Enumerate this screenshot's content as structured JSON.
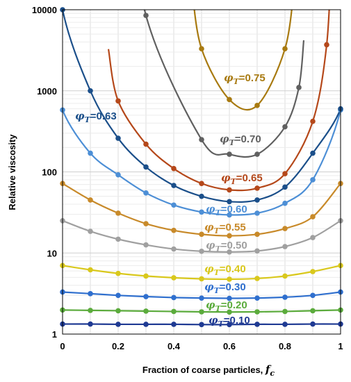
{
  "chart_data": {
    "type": "line",
    "title": "",
    "xlabel": "Fraction of coarse particles, f_c",
    "ylabel": "Relative viscosity",
    "xlim": [
      0,
      1
    ],
    "ylim": [
      1,
      10000
    ],
    "y_scale": "log",
    "grid": true,
    "x_ticks": [
      "0",
      "0.2",
      "0.4",
      "0.6",
      "0.8",
      "1"
    ],
    "y_ticks": [
      "1",
      "10",
      "100",
      "1000",
      "10000"
    ],
    "series": [
      {
        "name": "φT=0.10",
        "label_prefix": "φ",
        "label_sub": "T",
        "label_value": "=0.10",
        "color": "#1f3a93",
        "x": [
          0,
          0.1,
          0.2,
          0.3,
          0.4,
          0.5,
          0.6,
          0.7,
          0.8,
          0.9,
          1.0
        ],
        "y": [
          1.33,
          1.33,
          1.32,
          1.32,
          1.32,
          1.31,
          1.31,
          1.32,
          1.32,
          1.33,
          1.33
        ]
      },
      {
        "name": "φT=0.20",
        "label_prefix": "φ",
        "label_sub": "T",
        "label_value": "=0.20",
        "color": "#5bab3c",
        "x": [
          0,
          0.1,
          0.2,
          0.3,
          0.4,
          0.5,
          0.6,
          0.7,
          0.8,
          0.9,
          1.0
        ],
        "y": [
          1.98,
          1.96,
          1.94,
          1.92,
          1.9,
          1.88,
          1.87,
          1.88,
          1.9,
          1.94,
          1.98
        ]
      },
      {
        "name": "φT=0.30",
        "label_prefix": "φ",
        "label_sub": "T",
        "label_value": "=0.30",
        "color": "#2f6fce",
        "x": [
          0,
          0.1,
          0.2,
          0.3,
          0.4,
          0.5,
          0.6,
          0.7,
          0.8,
          0.9,
          1.0
        ],
        "y": [
          3.3,
          3.15,
          3.0,
          2.9,
          2.82,
          2.78,
          2.76,
          2.78,
          2.85,
          3.0,
          3.3
        ]
      },
      {
        "name": "φT=0.40",
        "label_prefix": "φ",
        "label_sub": "T",
        "label_value": "=0.40",
        "color": "#d9c81c",
        "x": [
          0,
          0.1,
          0.2,
          0.3,
          0.4,
          0.5,
          0.6,
          0.7,
          0.8,
          0.9,
          1.0
        ],
        "y": [
          7.0,
          6.2,
          5.6,
          5.2,
          4.95,
          4.8,
          4.75,
          4.85,
          5.2,
          5.9,
          7.0
        ]
      },
      {
        "name": "φT=0.50",
        "label_prefix": "φ",
        "label_sub": "T",
        "label_value": "=0.50",
        "color": "#a0a0a0",
        "x": [
          0,
          0.1,
          0.2,
          0.3,
          0.4,
          0.5,
          0.6,
          0.7,
          0.8,
          0.9,
          1.0
        ],
        "y": [
          25,
          18.5,
          14.8,
          12.6,
          11.2,
          10.5,
          10.3,
          10.6,
          12.0,
          15.5,
          25
        ]
      },
      {
        "name": "φT=0.55",
        "label_prefix": "φ",
        "label_sub": "T",
        "label_value": "=0.55",
        "color": "#c88a2a",
        "x": [
          0,
          0.1,
          0.2,
          0.3,
          0.4,
          0.5,
          0.6,
          0.7,
          0.8,
          0.9,
          1.0
        ],
        "y": [
          72,
          45,
          31,
          23,
          19,
          17,
          16.3,
          17,
          20,
          28,
          72
        ]
      },
      {
        "name": "φT=0.60",
        "label_prefix": "φ",
        "label_sub": "T",
        "label_value": "=0.60",
        "color": "#4d8fd6",
        "x": [
          0,
          0.1,
          0.2,
          0.3,
          0.4,
          0.5,
          0.6,
          0.7,
          0.8,
          0.9,
          1.0
        ],
        "y": [
          580,
          170,
          92,
          55,
          39,
          32,
          29.5,
          31,
          41,
          80,
          580
        ]
      },
      {
        "name": "φT=0.63",
        "label_prefix": "φ",
        "label_sub": "T",
        "label_value": "=0.63",
        "color": "#1b4f8a",
        "x": [
          0,
          0.1,
          0.2,
          0.3,
          0.4,
          0.5,
          0.6,
          0.7,
          0.8,
          0.9,
          1.0
        ],
        "y": [
          10000,
          1000,
          260,
          115,
          68,
          50,
          43,
          45,
          65,
          170,
          600
        ]
      },
      {
        "name": "φT=0.65",
        "label_prefix": "φ",
        "label_sub": "T",
        "label_value": "=0.65",
        "color": "#b5481a",
        "x": [
          0.2,
          0.3,
          0.4,
          0.5,
          0.6,
          0.7,
          0.8,
          0.9,
          0.95
        ],
        "y": [
          750,
          220,
          110,
          72,
          60,
          63,
          95,
          420,
          3700
        ]
      },
      {
        "name": "φT=0.70",
        "label_prefix": "φ",
        "label_sub": "T",
        "label_value": "=0.70",
        "color": "#606060",
        "x": [
          0.3,
          0.5,
          0.6,
          0.7,
          0.8,
          0.85
        ],
        "y": [
          8500,
          250,
          165,
          165,
          360,
          1100
        ]
      },
      {
        "name": "φT=0.75",
        "label_prefix": "φ",
        "label_sub": "T",
        "label_value": "=0.75",
        "color": "#a87a10",
        "x": [
          0.5,
          0.6,
          0.7,
          0.8
        ],
        "y": [
          3300,
          780,
          660,
          3300
        ]
      }
    ]
  }
}
